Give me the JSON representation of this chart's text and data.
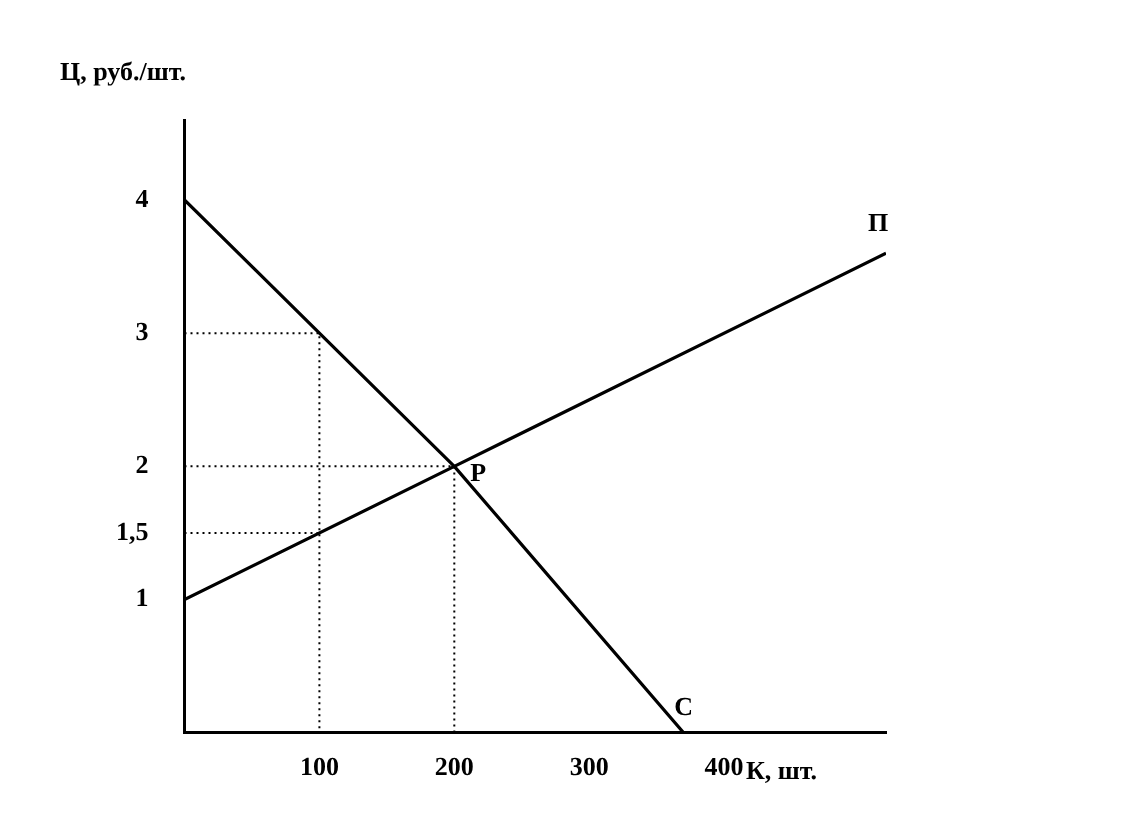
{
  "chart_data": {
    "type": "line",
    "xlabel": "К, шт.",
    "ylabel": "Ц, руб./шт.",
    "xlim": [
      0,
      520
    ],
    "ylim": [
      0,
      4.6
    ],
    "xticks": [
      100,
      200,
      300,
      400
    ],
    "yticks": [
      1,
      {
        "value": 1.5,
        "label": "1,5"
      },
      2,
      3,
      4
    ],
    "grid": false,
    "legend": false,
    "marker": "none",
    "series": [
      {
        "name": "С",
        "color": "#000000",
        "x": [
          0,
          200,
          370
        ],
        "values": [
          4,
          2,
          0
        ],
        "line_style": "solid"
      },
      {
        "name": "П",
        "color": "#000000",
        "x": [
          0,
          200,
          520
        ],
        "values": [
          1,
          2,
          3.6
        ],
        "line_style": "solid"
      },
      {
        "color": "#000000",
        "x": [
          0,
          100,
          100
        ],
        "values": [
          3,
          3,
          0
        ],
        "line_style": "dotted"
      },
      {
        "color": "#000000",
        "x": [
          0,
          100
        ],
        "values": [
          1.5,
          1.5
        ],
        "line_style": "dotted"
      },
      {
        "color": "#000000",
        "x": [
          0,
          200,
          200
        ],
        "values": [
          2,
          2,
          0
        ],
        "line_style": "dotted"
      }
    ],
    "annotations": [
      {
        "text": "P",
        "x": 200,
        "y": 2
      }
    ]
  }
}
